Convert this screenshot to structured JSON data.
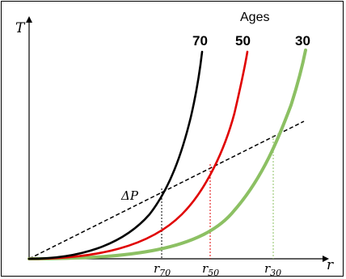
{
  "title": "Ages",
  "y_axis_label": "T",
  "x_axis_label": "r",
  "line_label": "ΔP",
  "colors": {
    "age_70": "#000000",
    "age_50": "#e00000",
    "age_30": "#8cc063",
    "dashed": "#000000"
  },
  "curves": [
    {
      "key": "age_70",
      "label": "70",
      "tick_main": "r",
      "tick_sub": "70"
    },
    {
      "key": "age_50",
      "label": "50",
      "tick_main": "r",
      "tick_sub": "50"
    },
    {
      "key": "age_30",
      "label": "30",
      "tick_main": "r",
      "tick_sub": "30"
    }
  ]
}
